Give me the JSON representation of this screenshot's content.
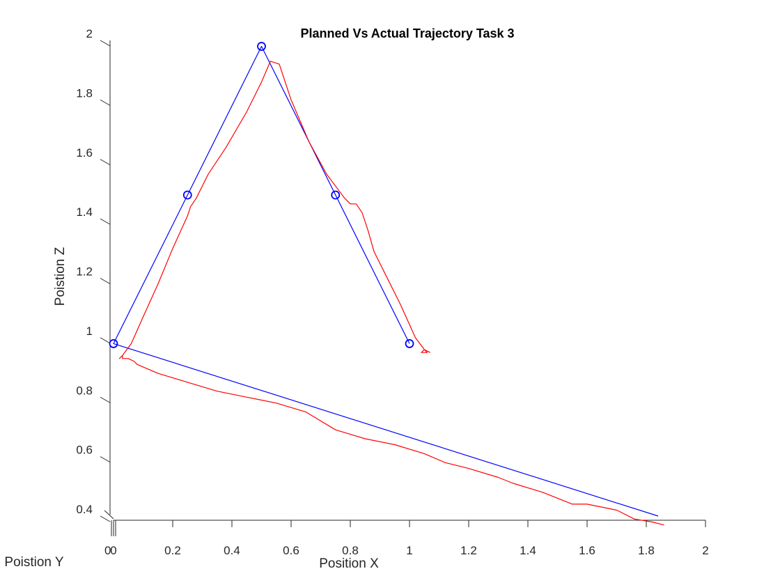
{
  "chart_data": {
    "type": "line",
    "title": "Planned Vs Actual Trajectory Task 3",
    "xlabel": "Position X",
    "ylabel": "Poistion Z",
    "y_depth_label": "Poistion Y",
    "xlim": [
      0,
      2
    ],
    "zlim": [
      0.4,
      2
    ],
    "x_ticks": [
      "0",
      "0.2",
      "0.4",
      "0.6",
      "0.8",
      "1",
      "1.2",
      "1.4",
      "1.6",
      "1.8",
      "2"
    ],
    "z_ticks": [
      "0.4",
      "0.6",
      "0.8",
      "1",
      "1.2",
      "1.4",
      "1.6",
      "1.8",
      "2"
    ],
    "y_depth_tick": "0",
    "grid": false,
    "series": [
      {
        "role": "planned",
        "color": "#0000ff",
        "x": [
          1.84,
          0.0,
          0.25,
          0.5,
          0.75,
          1.0
        ],
        "z": [
          0.4,
          0.98,
          1.48,
          1.98,
          1.48,
          0.98
        ],
        "waypoints": [
          {
            "x": 0.0,
            "z": 0.98
          },
          {
            "x": 0.25,
            "z": 1.48
          },
          {
            "x": 0.5,
            "z": 1.98
          },
          {
            "x": 0.75,
            "z": 1.48
          },
          {
            "x": 1.0,
            "z": 0.98
          }
        ]
      },
      {
        "role": "actual",
        "color": "#ff0000",
        "x": [
          1.86,
          1.82,
          1.76,
          1.7,
          1.6,
          1.55,
          1.45,
          1.35,
          1.3,
          1.2,
          1.12,
          1.05,
          0.95,
          0.85,
          0.75,
          0.65,
          0.55,
          0.5,
          0.45,
          0.35,
          0.25,
          0.15,
          0.08,
          0.07,
          0.05,
          0.03,
          0.03,
          0.02,
          0.03,
          0.06,
          0.1,
          0.15,
          0.2,
          0.25,
          0.26,
          0.28,
          0.32,
          0.38,
          0.45,
          0.5,
          0.53,
          0.56,
          0.6,
          0.66,
          0.72,
          0.78,
          0.8,
          0.82,
          0.84,
          0.86,
          0.88,
          0.92,
          0.97,
          1.02,
          1.05,
          1.04,
          1.06,
          1.05,
          1.07
        ],
        "z": [
          0.37,
          0.38,
          0.39,
          0.42,
          0.44,
          0.44,
          0.48,
          0.51,
          0.53,
          0.56,
          0.58,
          0.61,
          0.64,
          0.66,
          0.69,
          0.75,
          0.78,
          0.79,
          0.8,
          0.82,
          0.85,
          0.88,
          0.91,
          0.92,
          0.93,
          0.93,
          0.94,
          0.93,
          0.94,
          0.98,
          1.07,
          1.18,
          1.3,
          1.41,
          1.44,
          1.47,
          1.55,
          1.64,
          1.76,
          1.86,
          1.93,
          1.92,
          1.8,
          1.66,
          1.55,
          1.47,
          1.45,
          1.45,
          1.42,
          1.36,
          1.29,
          1.21,
          1.11,
          1.0,
          0.96,
          0.95,
          0.95,
          0.96,
          0.95
        ]
      }
    ]
  }
}
